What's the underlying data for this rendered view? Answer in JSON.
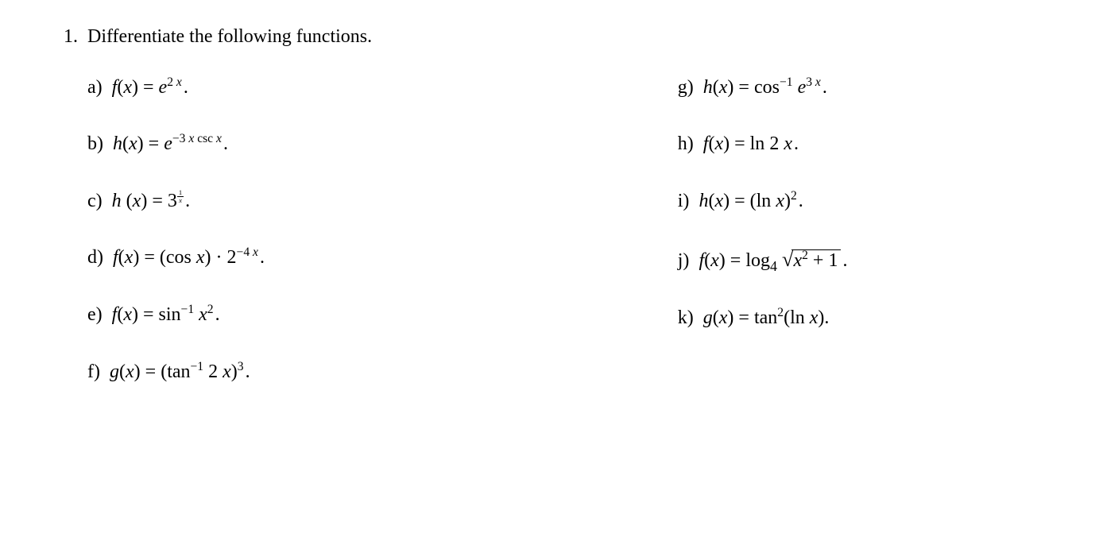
{
  "problem_number": "1.",
  "problem_text": "Differentiate the following functions.",
  "labels": {
    "a": "a)",
    "b": "b)",
    "c": "c)",
    "d": "d)",
    "e": "e)",
    "f": "f)",
    "g": "g)",
    "h": "h)",
    "i": "i)",
    "j": "j)",
    "k": "k)"
  },
  "items": {
    "a": {
      "fn": "f",
      "var": "x",
      "exp": "2",
      "var2": "x"
    },
    "b": {
      "fn": "h",
      "var": "x",
      "exp": "−3",
      "var2": "x",
      "trig": "csc",
      "var3": "x"
    },
    "c": {
      "fn": "h",
      "var": "x",
      "base": "3",
      "num": "1",
      "den": "x"
    },
    "d": {
      "fn": "f",
      "var": "x",
      "trig": "cos",
      "var2": "x",
      "base": "2",
      "exp": "−4",
      "var3": "x"
    },
    "e": {
      "fn": "f",
      "var": "x",
      "trig": "sin",
      "sup": "−1",
      "var2": "x",
      "pow": "2"
    },
    "f": {
      "fn": "g",
      "var": "x",
      "trig": "tan",
      "sup": "−1",
      "coef": "2",
      "var2": "x",
      "pow": "3"
    },
    "g": {
      "fn": "h",
      "var": "x",
      "trig": "cos",
      "sup": "−1",
      "exp": "3",
      "var2": "x"
    },
    "h": {
      "fn": "f",
      "var": "x",
      "log": "ln",
      "coef": "2",
      "var2": "x"
    },
    "i": {
      "fn": "h",
      "var": "x",
      "log": "ln",
      "var2": "x",
      "pow": "2"
    },
    "j": {
      "fn": "f",
      "var": "x",
      "log": "log",
      "base": "4",
      "var2": "x",
      "pow": "2",
      "plus1": "+ 1"
    },
    "k": {
      "fn": "g",
      "var": "x",
      "trig": "tan",
      "pow": "2",
      "log": "ln",
      "var2": "x"
    }
  },
  "period": "."
}
